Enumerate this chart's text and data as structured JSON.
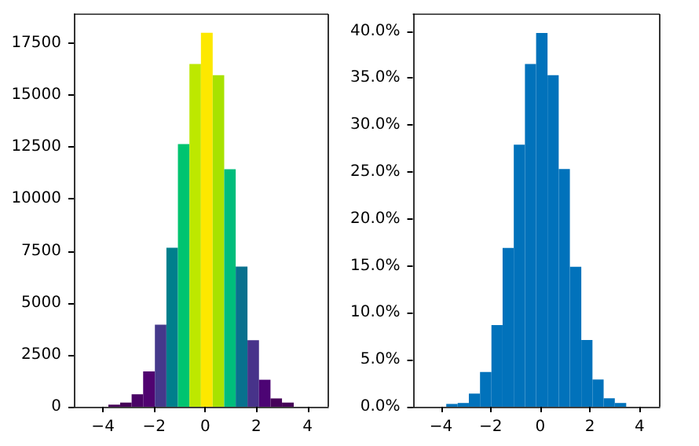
{
  "chart_data": [
    {
      "type": "histogram",
      "bins": [
        -4.69,
        -4.24,
        -3.79,
        -3.33,
        -2.88,
        -2.43,
        -1.97,
        -1.52,
        -1.07,
        -0.62,
        -0.17,
        0.29,
        0.74,
        1.19,
        1.65,
        2.1,
        2.55,
        3.0,
        3.46,
        3.91,
        4.36
      ],
      "values": [
        null,
        null,
        100,
        200,
        600,
        1700,
        3950,
        7650,
        12640,
        16500,
        18000,
        15960,
        11430,
        6750,
        3200,
        1300,
        400,
        200,
        null,
        null
      ],
      "colors": [
        null,
        null,
        "#460258",
        "#460258",
        "#4a0366",
        "#500370",
        "#45398b",
        "#007f8c",
        "#00c470",
        "#bde800",
        "#fde800",
        "#a8e200",
        "#00bd7c",
        "#08718e",
        "#47338a",
        "#4c0474",
        "#460259",
        "#460258",
        null,
        null
      ],
      "xlim": [
        -5.14,
        4.81
      ],
      "xticks": [
        -4,
        -2,
        0,
        2,
        4
      ],
      "ylim": [
        0,
        18900
      ],
      "yticks": [
        0,
        2500,
        5000,
        7500,
        10000,
        12500,
        15000,
        17500
      ],
      "grid": false
    },
    {
      "type": "histogram",
      "bins": [
        -4.69,
        -4.24,
        -3.79,
        -3.33,
        -2.88,
        -2.43,
        -1.97,
        -1.52,
        -1.07,
        -0.62,
        -0.17,
        0.29,
        0.74,
        1.19,
        1.65,
        2.1,
        2.55,
        3.0,
        3.46,
        3.91,
        4.36
      ],
      "values": [
        null,
        null,
        0.3,
        0.4,
        1.4,
        3.7,
        8.7,
        16.9,
        27.9,
        36.5,
        39.8,
        35.3,
        25.3,
        14.9,
        7.1,
        2.9,
        0.9,
        0.4,
        null,
        null
      ],
      "color": "#0172bb",
      "xlim": [
        -5.14,
        4.81
      ],
      "xticks": [
        -4,
        -2,
        0,
        2,
        4
      ],
      "ylim": [
        0,
        41.8
      ],
      "yticks": [
        {
          "value": 0,
          "label": "0.0%"
        },
        {
          "value": 5,
          "label": "5.0%"
        },
        {
          "value": 10,
          "label": "10.0%"
        },
        {
          "value": 15,
          "label": "15.0%"
        },
        {
          "value": 20,
          "label": "20.0%"
        },
        {
          "value": 25,
          "label": "25.0%"
        },
        {
          "value": 30,
          "label": "30.0%"
        },
        {
          "value": 35,
          "label": "35.0%"
        },
        {
          "value": 40,
          "label": "40.0%"
        }
      ],
      "grid": false
    }
  ]
}
